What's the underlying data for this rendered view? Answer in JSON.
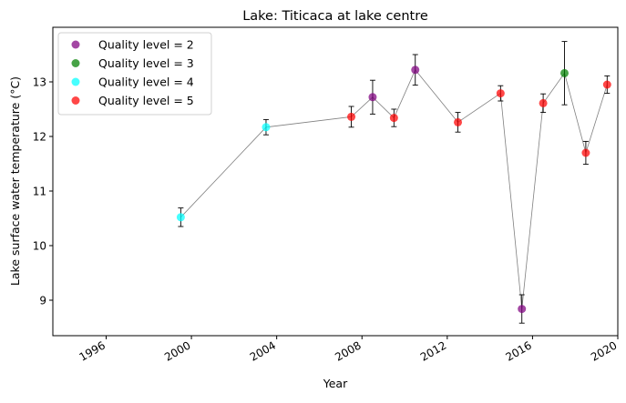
{
  "chart_data": {
    "type": "scatter",
    "title": "Lake: Titicaca at lake centre",
    "xlabel": "Year",
    "ylabel": "Lake surface water temperature (°C)",
    "xlim": [
      1993.5,
      2020.0
    ],
    "ylim": [
      8.35,
      14.0
    ],
    "x_ticks": [
      1996,
      2000,
      2004,
      2008,
      2012,
      2016,
      2020
    ],
    "y_ticks": [
      9,
      10,
      11,
      12,
      13
    ],
    "grid": false,
    "legend_position": "top-left",
    "line_color": "#808080",
    "series": [
      {
        "name": "Quality level = 2",
        "color": "#800080",
        "points": [
          {
            "x": 2008.5,
            "y": 12.72,
            "err": 0.31
          },
          {
            "x": 2010.5,
            "y": 13.22,
            "err": 0.28
          },
          {
            "x": 2015.5,
            "y": 8.84,
            "err": 0.26
          }
        ]
      },
      {
        "name": "Quality level = 3",
        "color": "#008000",
        "points": [
          {
            "x": 2017.5,
            "y": 13.16,
            "err": 0.58
          }
        ]
      },
      {
        "name": "Quality level = 4",
        "color": "#00ffff",
        "points": [
          {
            "x": 1999.5,
            "y": 10.52,
            "err": 0.17
          },
          {
            "x": 2003.5,
            "y": 12.17,
            "err": 0.14
          }
        ]
      },
      {
        "name": "Quality level = 5",
        "color": "#ff0000",
        "points": [
          {
            "x": 2007.5,
            "y": 12.36,
            "err": 0.19
          },
          {
            "x": 2009.5,
            "y": 12.34,
            "err": 0.16
          },
          {
            "x": 2012.5,
            "y": 12.26,
            "err": 0.18
          },
          {
            "x": 2014.5,
            "y": 12.79,
            "err": 0.14
          },
          {
            "x": 2016.5,
            "y": 12.61,
            "err": 0.17
          },
          {
            "x": 2018.5,
            "y": 11.7,
            "err": 0.21
          },
          {
            "x": 2019.5,
            "y": 12.95,
            "err": 0.16
          }
        ]
      }
    ]
  }
}
